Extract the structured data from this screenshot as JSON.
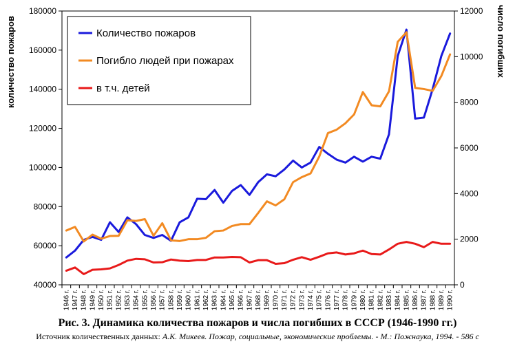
{
  "chart_data": {
    "type": "line",
    "x": [
      "1946 г.",
      "1947 г.",
      "1948 г.",
      "1949 г.",
      "1950 г.",
      "1951 г.",
      "1952 г.",
      "1953 г.",
      "1954 г.",
      "1955 г.",
      "1956 г.",
      "1957 г.",
      "1958 г.",
      "1959 г.",
      "1960 г.",
      "1961 г.",
      "1962 г.",
      "1963 г.",
      "1964 г.",
      "1965 г.",
      "1966 г.",
      "1967 г.",
      "1968 г.",
      "1969 г.",
      "1970 г.",
      "1971 г.",
      "1972 г.",
      "1973 г.",
      "1974 г.",
      "1975 г.",
      "1976 г.",
      "1977 г.",
      "1978 г.",
      "1979 г.",
      "1980 г.",
      "1981 г.",
      "1982 г.",
      "1983 г.",
      "1984 г.",
      "1985 г.",
      "1986 г.",
      "1987 г.",
      "1988 г.",
      "1989 г.",
      "1990 г."
    ],
    "series": [
      {
        "name": "Количество пожаров",
        "axis": "left",
        "color": "#1a1adc",
        "values": [
          54000,
          57500,
          63000,
          64500,
          63000,
          72000,
          67000,
          74500,
          71000,
          65500,
          64000,
          65500,
          62500,
          72000,
          74500,
          84000,
          83800,
          88500,
          82000,
          88000,
          91000,
          86000,
          92500,
          96500,
          95500,
          99000,
          103500,
          100000,
          102500,
          110500,
          107000,
          104000,
          102500,
          105500,
          103000,
          105500,
          104500,
          117000,
          157000,
          170500,
          125000,
          125500,
          140000,
          157000,
          168500
        ]
      },
      {
        "name": "Погибло людей при пожарах",
        "axis": "right",
        "color": "#f28a22",
        "values": [
          2380,
          2540,
          1900,
          2200,
          2020,
          2140,
          2150,
          2830,
          2800,
          2880,
          2150,
          2700,
          1950,
          1920,
          2000,
          2000,
          2060,
          2350,
          2380,
          2580,
          2660,
          2660,
          3150,
          3660,
          3480,
          3750,
          4500,
          4720,
          4880,
          5620,
          6650,
          6800,
          7080,
          7470,
          8450,
          7870,
          7820,
          8480,
          10650,
          11070,
          8630,
          8580,
          8500,
          9150,
          10100
        ]
      },
      {
        "name": "в т.ч. детей",
        "axis": "right",
        "color": "#e81a1a",
        "values": [
          620,
          760,
          470,
          660,
          680,
          720,
          870,
          1060,
          1140,
          1120,
          980,
          990,
          1110,
          1060,
          1040,
          1090,
          1090,
          1200,
          1200,
          1220,
          1210,
          980,
          1080,
          1080,
          920,
          950,
          1100,
          1210,
          1100,
          1230,
          1380,
          1420,
          1330,
          1380,
          1500,
          1350,
          1330,
          1550,
          1800,
          1880,
          1800,
          1650,
          1880,
          1800,
          1800
        ]
      }
    ],
    "y_left": {
      "label": "количество пожаров",
      "min": 40000,
      "max": 180000,
      "ticks": [
        40000,
        60000,
        80000,
        100000,
        120000,
        140000,
        160000,
        180000
      ]
    },
    "y_right": {
      "label": "число погибших",
      "min": 0,
      "max": 12000,
      "ticks": [
        0,
        2000,
        4000,
        6000,
        8000,
        10000,
        12000
      ]
    },
    "legend": {
      "placement": "top-left",
      "boxed": true
    },
    "grid": false
  },
  "caption": {
    "title": "Рис. 3. Динамика количества пожаров и числа погибших  в СССР (1946-1990 гг.)",
    "source_prefix": "Источник количественных данных: ",
    "source_italic": "А.К. Микеев. Пожар, социальные, экономические проблемы. - М.: Пожнаука, 1994. - 586 с"
  }
}
